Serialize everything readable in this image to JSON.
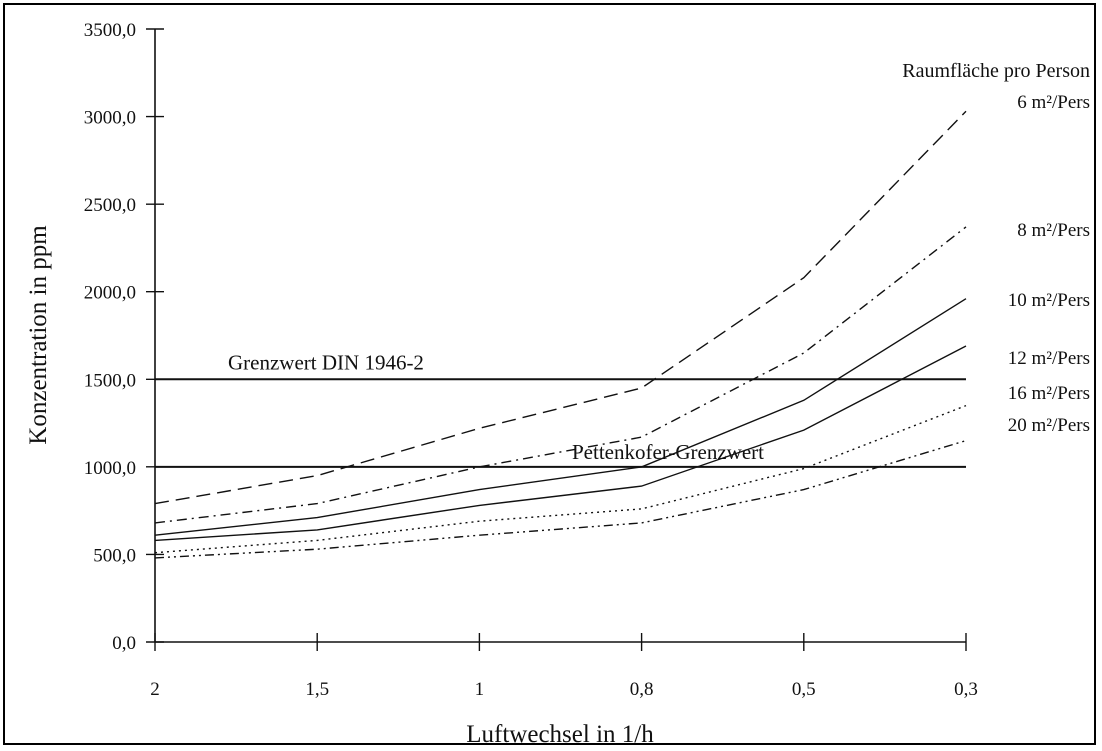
{
  "chart_data": {
    "type": "line",
    "xlabel": "Luftwechsel in 1/h",
    "ylabel": "Konzentration in ppm",
    "x_categories": [
      "2",
      "1,5",
      "1",
      "0,8",
      "0,5",
      "0,3"
    ],
    "y_ticks": [
      "0,0",
      "500,0",
      "1000,0",
      "1500,0",
      "2000,0",
      "2500,0",
      "3000,0",
      "3500,0"
    ],
    "ylim": [
      0,
      3500
    ],
    "grid": false,
    "legend_title": "Raumfläche pro Person",
    "series": [
      {
        "name": "6 m²/Pers",
        "style": "dashed",
        "values": [
          790,
          950,
          1220,
          1450,
          2080,
          3030
        ]
      },
      {
        "name": "8 m²/Pers",
        "style": "dash-dot",
        "values": [
          680,
          790,
          1000,
          1170,
          1650,
          2370
        ]
      },
      {
        "name": "10 m²/Pers",
        "style": "solid",
        "values": [
          610,
          710,
          870,
          1000,
          1380,
          1960
        ]
      },
      {
        "name": "12 m²/Pers",
        "style": "solid",
        "values": [
          580,
          640,
          780,
          890,
          1210,
          1690
        ]
      },
      {
        "name": "16 m²/Pers",
        "style": "dotted",
        "values": [
          510,
          580,
          690,
          760,
          990,
          1350
        ]
      },
      {
        "name": "20 m²/Pers",
        "style": "dash-dot-dot",
        "values": [
          480,
          530,
          610,
          680,
          870,
          1150
        ]
      }
    ],
    "reference_lines": [
      {
        "label": "Grenzwert DIN 1946-2",
        "value": 1500
      },
      {
        "label": "Pettenkofer-Grenzwert",
        "value": 1000
      }
    ]
  }
}
